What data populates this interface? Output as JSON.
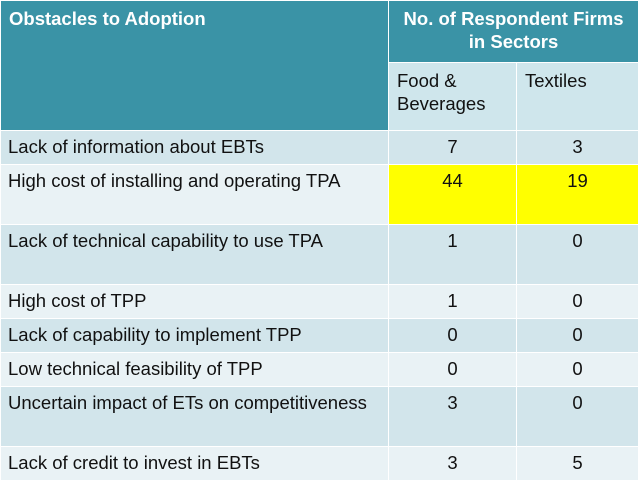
{
  "table": {
    "header": {
      "obstacles_label": "Obstacles to Adoption",
      "respondents_label": "No. of Respondent Firms in Sectors",
      "sectors": [
        "Food & Beverages",
        "Textiles"
      ]
    },
    "rows": [
      {
        "obstacle": "Lack of information about EBTs",
        "food_beverages": "7",
        "textiles": "3"
      },
      {
        "obstacle": "High cost of installing and operating TPA",
        "food_beverages": "44",
        "textiles": "19"
      },
      {
        "obstacle": "Lack of technical capability to use TPA",
        "food_beverages": "1",
        "textiles": "0"
      },
      {
        "obstacle": "High cost of TPP",
        "food_beverages": "1",
        "textiles": "0"
      },
      {
        "obstacle": "Lack of capability to implement TPP",
        "food_beverages": "0",
        "textiles": "0"
      },
      {
        "obstacle": "Low technical feasibility of TPP",
        "food_beverages": "0",
        "textiles": "0"
      },
      {
        "obstacle": "Uncertain impact of ETs on competitiveness",
        "food_beverages": "3",
        "textiles": "0"
      },
      {
        "obstacle": "Lack of credit to invest in EBTs",
        "food_beverages": "3",
        "textiles": "5"
      }
    ],
    "colors": {
      "header_bg": "#3a93a6",
      "row_odd_bg": "#d2e5eb",
      "row_even_bg": "#e9f2f5",
      "highlight": "#ffff00"
    }
  }
}
